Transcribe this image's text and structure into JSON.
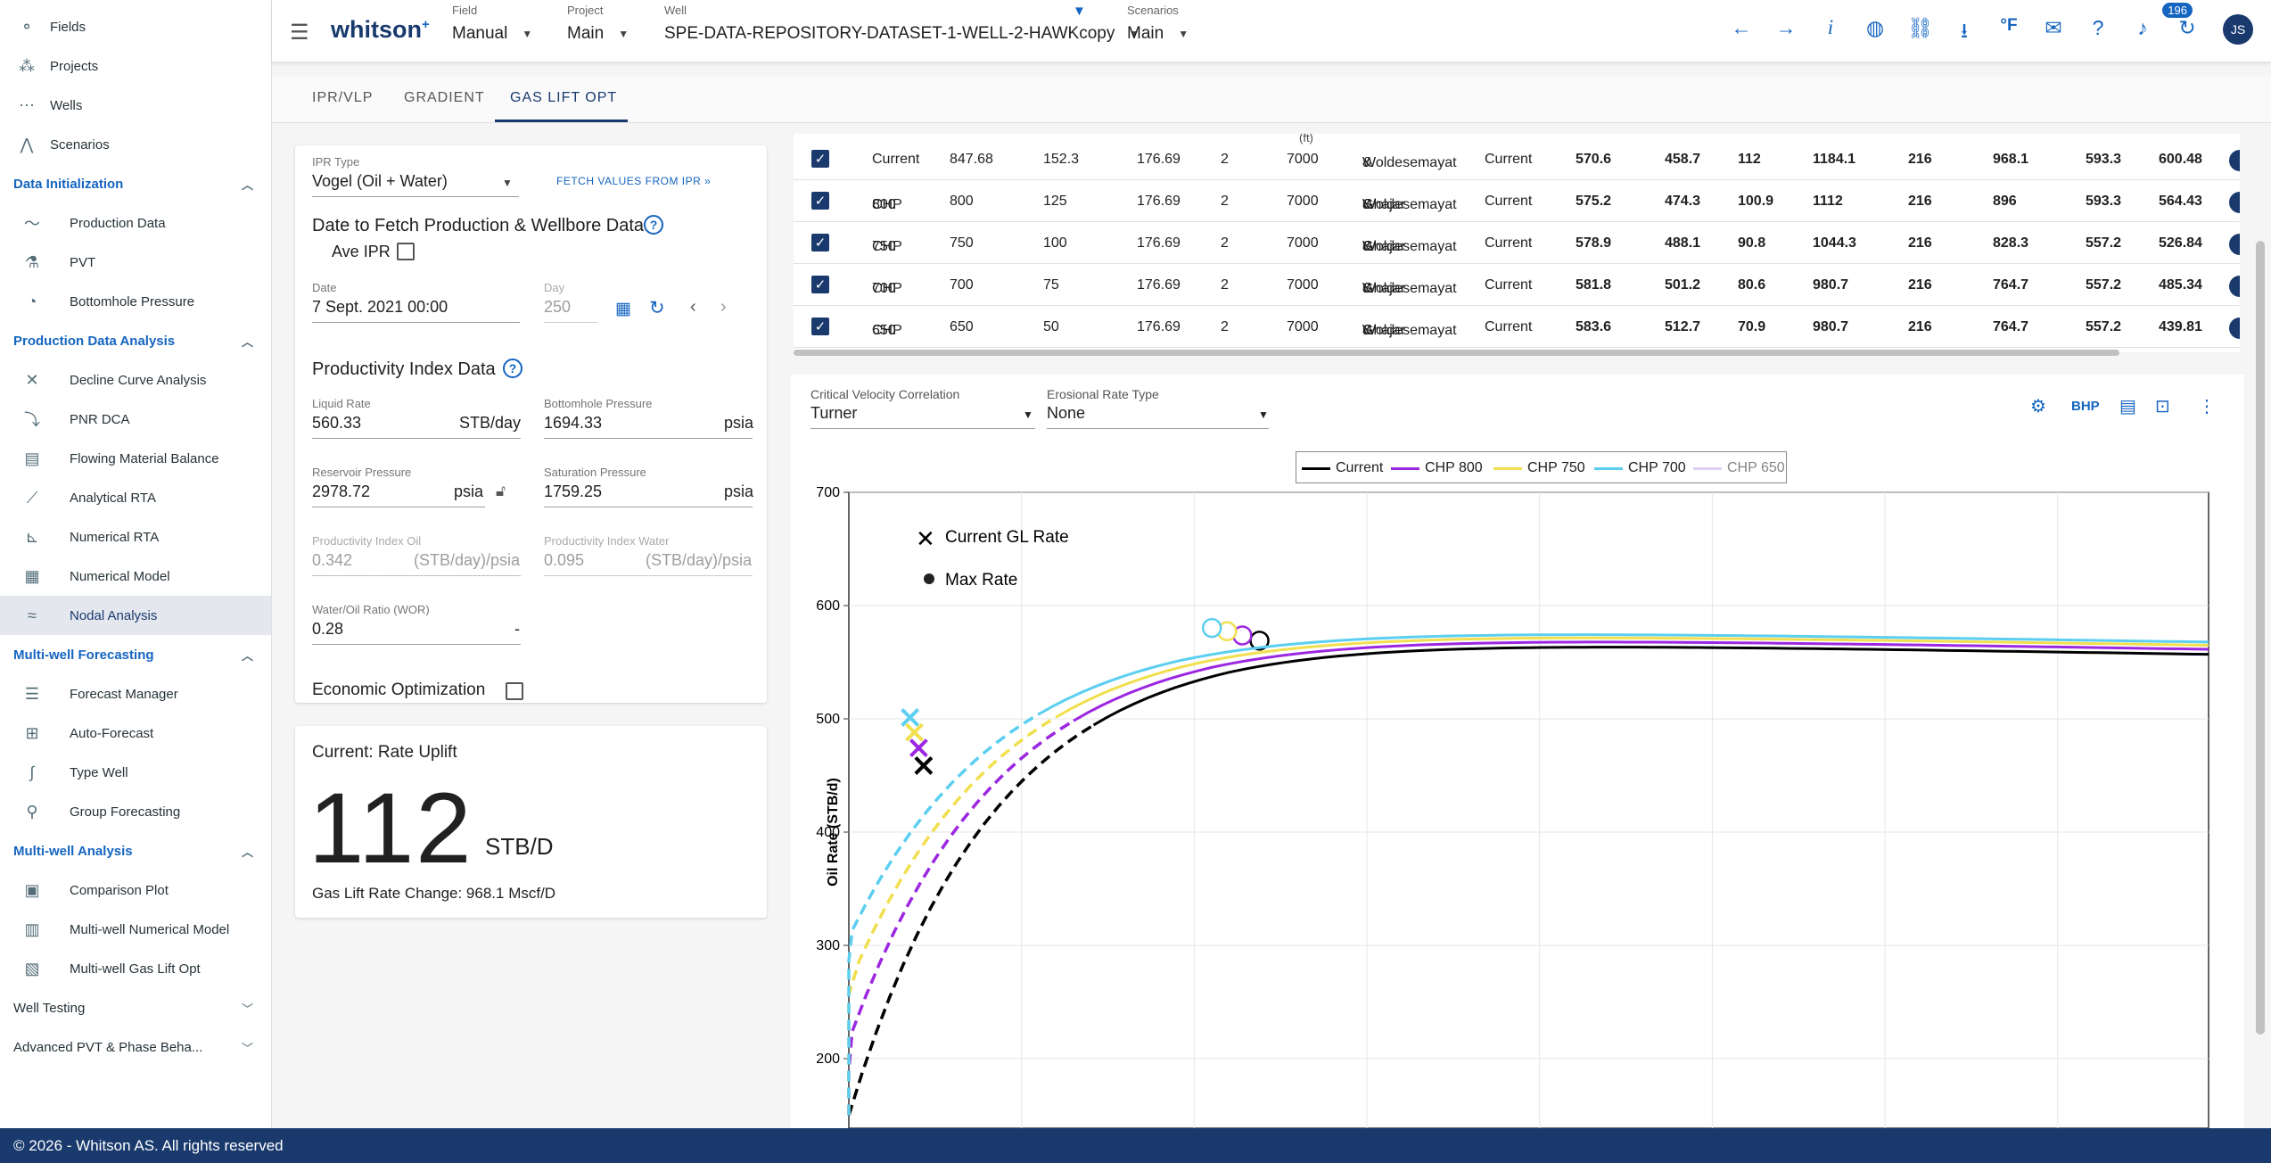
{
  "sidebar": {
    "top": [
      {
        "icon": "fields-icon",
        "label": "Fields"
      },
      {
        "icon": "projects-icon",
        "label": "Projects"
      },
      {
        "icon": "wells-icon",
        "label": "Wells"
      },
      {
        "icon": "scenarios-icon",
        "label": "Scenarios"
      }
    ],
    "sections": [
      {
        "title": "Data Initialization",
        "expanded": true,
        "items": [
          "Production Data",
          "PVT",
          "Bottomhole Pressure"
        ]
      },
      {
        "title": "Production Data Analysis",
        "expanded": true,
        "items": [
          "Decline Curve Analysis",
          "PNR DCA",
          "Flowing Material Balance",
          "Analytical RTA",
          "Numerical RTA",
          "Numerical Model",
          "Nodal Analysis"
        ]
      },
      {
        "title": "Multi-well Forecasting",
        "expanded": true,
        "items": [
          "Forecast Manager",
          "Auto-Forecast",
          "Type Well",
          "Group Forecasting"
        ]
      },
      {
        "title": "Multi-well Analysis",
        "expanded": true,
        "items": [
          "Comparison Plot",
          "Multi-well Numerical Model",
          "Multi-well Gas Lift Opt"
        ]
      },
      {
        "title": "Well Testing",
        "expanded": false,
        "items": []
      },
      {
        "title": "Advanced PVT & Phase Beha...",
        "expanded": false,
        "items": []
      }
    ],
    "active": "Nodal Analysis"
  },
  "footer": "© 2026 - Whitson AS. All rights reserved",
  "topbar": {
    "logo": "whitson",
    "logo_sup": "+",
    "field": {
      "caption": "Field",
      "value": "Manual"
    },
    "project": {
      "caption": "Project",
      "value": "Main"
    },
    "well": {
      "caption": "Well",
      "value": "SPE-DATA-REPOSITORY-DATASET-1-WELL-2-HAWKcopy"
    },
    "scenarios": {
      "caption": "Scenarios",
      "value": "Main"
    },
    "notifications": "196",
    "avatar": "JS",
    "icons": [
      "arrow-left-icon",
      "arrow-right-icon",
      "info-icon",
      "globe-icon",
      "link-icon",
      "download-icon",
      "fahrenheit-icon",
      "chat-icon",
      "help-icon",
      "bell-icon",
      "refresh-icon"
    ]
  },
  "tabs": [
    "IPR/VLP",
    "GRADIENT",
    "GAS LIFT OPT"
  ],
  "active_tab": "GAS LIFT OPT",
  "ipr": {
    "type_caption": "IPR Type",
    "type_value": "Vogel (Oil + Water)",
    "fetch_label": "FETCH VALUES FROM IPR",
    "date_title": "Date to Fetch Production & Wellbore Data",
    "ave_ipr": "Ave IPR",
    "date_caption": "Date",
    "date_value": "7 Sept. 2021 00:00",
    "day_caption": "Day",
    "day_value": "250",
    "pi_title": "Productivity Index Data",
    "liquid_rate": {
      "caption": "Liquid Rate",
      "value": "560.33",
      "unit": "STB/day"
    },
    "bhp": {
      "caption": "Bottomhole Pressure",
      "value": "1694.33",
      "unit": "psia"
    },
    "res_p": {
      "caption": "Reservoir Pressure",
      "value": "2978.72",
      "unit": "psia"
    },
    "sat_p": {
      "caption": "Saturation Pressure",
      "value": "1759.25",
      "unit": "psia"
    },
    "pi_oil": {
      "caption": "Productivity Index Oil",
      "value": "0.342",
      "unit": "(STB/day)/psia"
    },
    "pi_water": {
      "caption": "Productivity Index Water",
      "value": "0.095",
      "unit": "(STB/day)/psia"
    },
    "wor": {
      "caption": "Water/Oil Ratio (WOR)",
      "value": "0.28",
      "unit": "-"
    },
    "econ": "Economic Optimization"
  },
  "uplift": {
    "title": "Current: Rate Uplift",
    "value": "112",
    "unit": "STB/D",
    "change": "Gas Lift Rate Change: 968.1 Mscf/D"
  },
  "table": {
    "header_fragments": [
      "(ft)"
    ],
    "rows": [
      {
        "name": "Current",
        "c1": "847.68",
        "c2": "152.3",
        "c3": "176.69",
        "c4": "2",
        "c5": "7000",
        "corr1": "Woldesemayat",
        "corr2": "& Ghajar",
        "case": "Current",
        "v": [
          "570.6",
          "458.7",
          "112",
          "1184.1",
          "216",
          "968.1",
          "593.3",
          "600.48"
        ]
      },
      {
        "name": "CHP",
        "name2": "800",
        "c1": "800",
        "c2": "125",
        "c3": "176.69",
        "c4": "2",
        "c5": "7000",
        "corr1": "Woldesemayat",
        "corr2": "& Ghajar",
        "case": "Current",
        "v": [
          "575.2",
          "474.3",
          "100.9",
          "1112",
          "216",
          "896",
          "593.3",
          "564.43"
        ]
      },
      {
        "name": "CHP",
        "name2": "750",
        "c1": "750",
        "c2": "100",
        "c3": "176.69",
        "c4": "2",
        "c5": "7000",
        "corr1": "Woldesemayat",
        "corr2": "& Ghajar",
        "case": "Current",
        "v": [
          "578.9",
          "488.1",
          "90.8",
          "1044.3",
          "216",
          "828.3",
          "557.2",
          "526.84"
        ]
      },
      {
        "name": "CHP",
        "name2": "700",
        "c1": "700",
        "c2": "75",
        "c3": "176.69",
        "c4": "2",
        "c5": "7000",
        "corr1": "Woldesemayat",
        "corr2": "& Ghajar",
        "case": "Current",
        "v": [
          "581.8",
          "501.2",
          "80.6",
          "980.7",
          "216",
          "764.7",
          "557.2",
          "485.34"
        ]
      },
      {
        "name": "CHP",
        "name2": "650",
        "c1": "650",
        "c2": "50",
        "c3": "176.69",
        "c4": "2",
        "c5": "7000",
        "corr1": "Woldesemayat",
        "corr2": "& Ghajar",
        "case": "Current",
        "v": [
          "583.6",
          "512.7",
          "70.9",
          "980.7",
          "216",
          "764.7",
          "557.2",
          "439.81"
        ]
      }
    ]
  },
  "chart_controls": {
    "cvc_caption": "Critical Velocity Correlation",
    "cvc_value": "Turner",
    "ert_caption": "Erosional Rate Type",
    "ert_value": "None",
    "bhp_label": "BHP"
  },
  "chart_data": {
    "type": "line",
    "ylabel": "Oil Rate (STB/d)",
    "ylim": [
      150,
      700
    ],
    "yticks": [
      200,
      300,
      400,
      500,
      600,
      700
    ],
    "legend_markers": [
      "Current GL Rate",
      "Max Rate"
    ],
    "legend": "top",
    "grid": true,
    "series": [
      {
        "name": "Current",
        "color": "#000000",
        "max_rate": 570.6,
        "gl_rate": 458.7
      },
      {
        "name": "CHP 800",
        "color": "#9c27e0",
        "max_rate": 575.2,
        "gl_rate": 474.3
      },
      {
        "name": "CHP 750",
        "color": "#f2df4f",
        "max_rate": 578.9,
        "gl_rate": 488.1
      },
      {
        "name": "CHP 700",
        "color": "#5ccff0",
        "max_rate": 581.8,
        "gl_rate": 501.2
      },
      {
        "name": "CHP 650",
        "color": "#c8a8e8",
        "max_rate": 583.6,
        "gl_rate": 512.7,
        "hidden": true
      }
    ]
  }
}
